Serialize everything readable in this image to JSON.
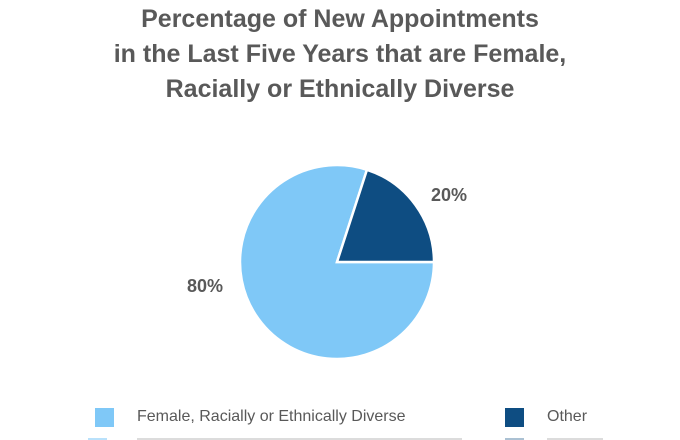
{
  "chart_data": {
    "type": "pie",
    "title": "Percentage of New Appointments\nin the Last Five Years that are Female,\nRacially or Ethnically Diverse",
    "title_color": "#595959",
    "start_angle_deg": 90,
    "slices": [
      {
        "label": "Female, Racially or Ethnically Diverse",
        "value": 80,
        "data_label": "80%",
        "color": "#7FC8F7"
      },
      {
        "label": "Other",
        "value": 20,
        "data_label": "20%",
        "color": "#0E4D82"
      }
    ],
    "data_label_color": "#595959",
    "slice_border_color": "#FFFFFF",
    "legend_position": "bottom",
    "legend_text_color": "#595959"
  }
}
